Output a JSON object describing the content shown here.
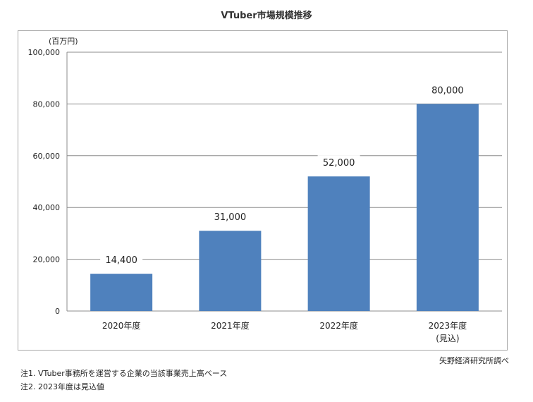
{
  "title": "VTuber市場規模推移",
  "source": "矢野経済研究所調べ",
  "notes": [
    "注1. VTuber事務所を運営する企業の当該事業売上高ベース",
    "注2. 2023年度は見込値"
  ],
  "chart_data": {
    "type": "bar",
    "title": "VTuber市場規模推移",
    "ylabel": "(百万円)",
    "xlabel": "",
    "categories": [
      "2020年度",
      "2021年度",
      "2022年度",
      "2023年度"
    ],
    "category_sublabels": [
      "",
      "",
      "",
      "(見込)"
    ],
    "values": [
      14400,
      31000,
      52000,
      80000
    ],
    "value_labels": [
      "14,400",
      "31,000",
      "52,000",
      "80,000"
    ],
    "ylim": [
      0,
      100000
    ],
    "yticks": [
      0,
      20000,
      40000,
      60000,
      80000,
      100000
    ],
    "ytick_labels": [
      "0",
      "20,000",
      "40,000",
      "60,000",
      "80,000",
      "100,000"
    ],
    "grid": true,
    "legend": "none",
    "bar_color": "#4f81bd"
  }
}
